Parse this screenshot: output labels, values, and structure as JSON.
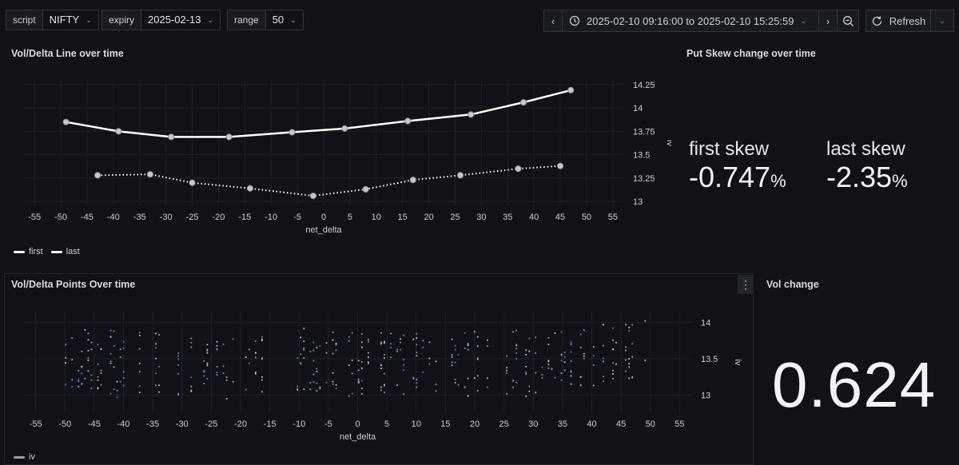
{
  "toolbar": {
    "vars": [
      {
        "label": "script",
        "value": "NIFTY"
      },
      {
        "label": "expiry",
        "value": "2025-02-13"
      },
      {
        "label": "range",
        "value": "50"
      }
    ],
    "time_range": "2025-02-10 09:16:00 to 2025-02-10 15:25:59",
    "refresh_label": "Refresh"
  },
  "panels": {
    "line": {
      "title": "Vol/Delta Line over time"
    },
    "skew": {
      "title": "Put Skew change over time",
      "first_label": "first skew",
      "first_value": "-0.747",
      "last_label": "last skew",
      "last_value": "-2.35",
      "unit": "%"
    },
    "points": {
      "title": "Vol/Delta Points Over time"
    },
    "volchange": {
      "title": "Vol change",
      "value": "0.624"
    }
  },
  "chart_data": [
    {
      "type": "line",
      "xlabel": "net_delta",
      "ylabel": "iv",
      "xticks": [
        "-55",
        "-50",
        "-45",
        "-40",
        "-35",
        "-30",
        "-25",
        "-20",
        "-15",
        "-10",
        "-5",
        "0",
        "5",
        "10",
        "15",
        "20",
        "25",
        "30",
        "35",
        "40",
        "45",
        "50",
        "55"
      ],
      "yticks": [
        "13",
        "13.25",
        "13.5",
        "13.75",
        "14",
        "14.25"
      ],
      "xlim": [
        -57,
        57
      ],
      "ylim": [
        12.95,
        14.3
      ],
      "legend": [
        "first",
        "last"
      ],
      "series": [
        {
          "name": "first",
          "style": "solid",
          "x": [
            -49,
            -39,
            -29,
            -18,
            -6,
            4,
            16,
            28,
            38,
            47
          ],
          "y": [
            13.85,
            13.75,
            13.69,
            13.69,
            13.74,
            13.78,
            13.86,
            13.93,
            14.06,
            14.19
          ]
        },
        {
          "name": "last",
          "style": "dotted",
          "x": [
            -43,
            -33,
            -25,
            -14,
            -2,
            8,
            17,
            26,
            37,
            45
          ],
          "y": [
            13.28,
            13.29,
            13.2,
            13.14,
            13.06,
            13.13,
            13.23,
            13.28,
            13.35,
            13.38
          ]
        }
      ]
    },
    {
      "type": "scatter",
      "xlabel": "net_delta",
      "ylabel": "iv",
      "xticks": [
        "-55",
        "-50",
        "-45",
        "-40",
        "-35",
        "-30",
        "-25",
        "-20",
        "-15",
        "-10",
        "-5",
        "0",
        "5",
        "10",
        "15",
        "20",
        "25",
        "30",
        "35",
        "40",
        "45",
        "50",
        "55"
      ],
      "yticks": [
        "13",
        "13.5",
        "14"
      ],
      "xlim": [
        -57,
        57
      ],
      "ylim": [
        12.75,
        14.15
      ],
      "legend": [
        "iv"
      ],
      "seed": 7,
      "colors": [
        "#73bf69",
        "#e0e4a8",
        "#5794f2",
        "#cccccc",
        "#8ab8ff"
      ]
    }
  ],
  "colors": {
    "bg": "#111217",
    "grid": "#24262c",
    "text": "#ccccdc"
  }
}
